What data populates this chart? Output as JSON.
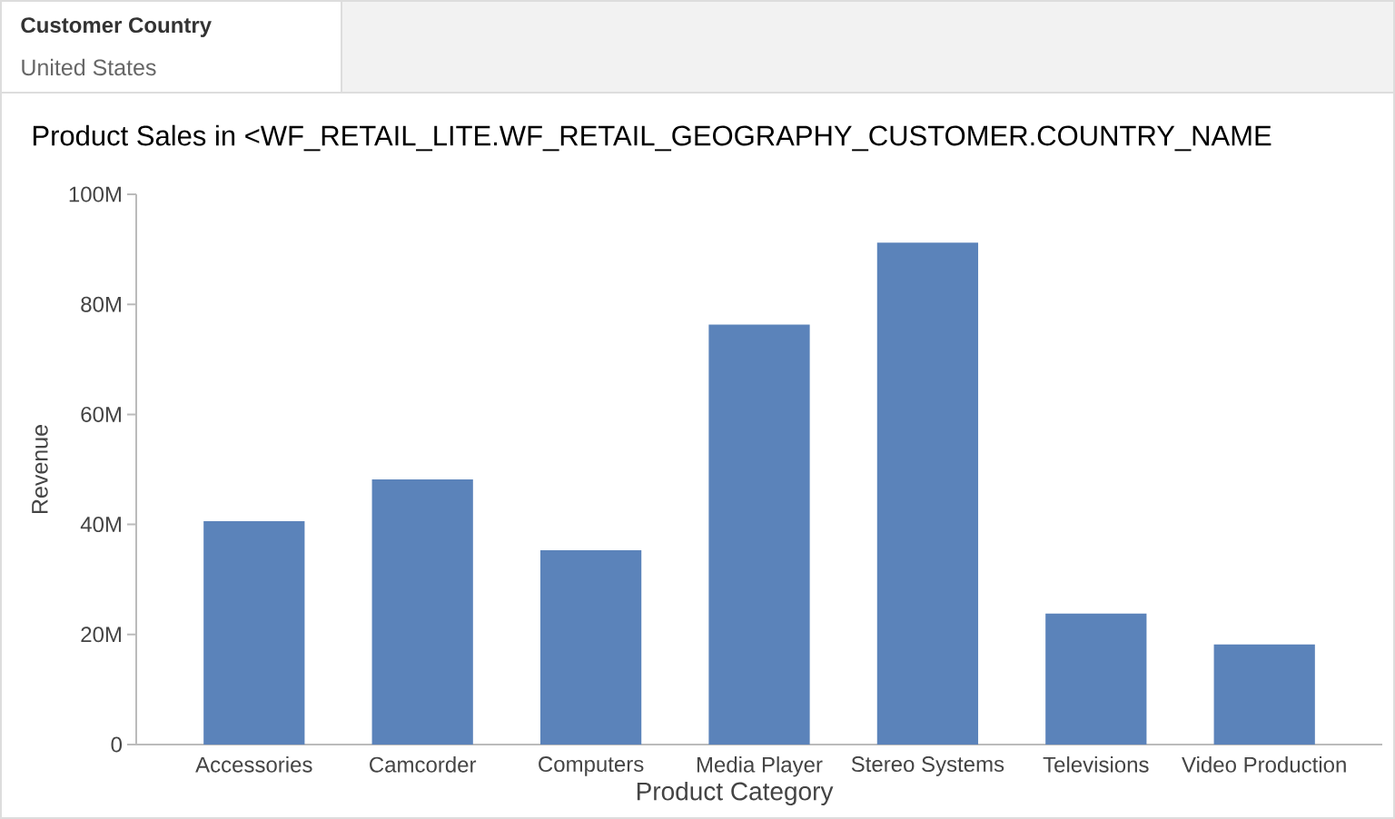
{
  "chart_data": {
    "type": "bar",
    "title": "Product Sales in  <WF_RETAIL_LITE.WF_RETAIL_GEOGRAPHY_CUSTOMER.COUNTRY_NAME",
    "annotations": [
      "Customer Country",
      "United States"
    ],
    "xlabel": "Product Category",
    "ylabel": "Revenue",
    "categories": [
      "Accessories",
      "Camcorder",
      "Computers",
      "Media Player",
      "Stereo Systems",
      "Televisions",
      "Video Production"
    ],
    "values": [
      40600000,
      48200000,
      35300000,
      76300000,
      91200000,
      23800000,
      18200000
    ],
    "color": "#5b83ba",
    "ylim": [
      0,
      100000000
    ],
    "yticks": [
      0,
      {
        "value": 20000000,
        "label": "20M"
      },
      {
        "value": 40000000,
        "label": "40M"
      },
      {
        "value": 60000000,
        "label": "60M"
      },
      {
        "value": 80000000,
        "label": "80M"
      },
      {
        "value": 100000000,
        "label": "100M"
      }
    ]
  }
}
